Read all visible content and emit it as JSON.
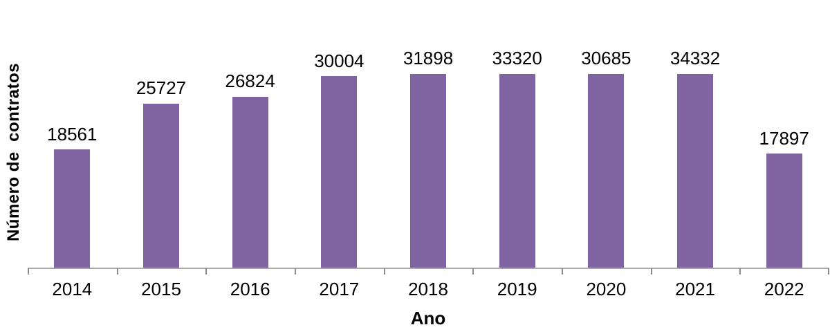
{
  "chart_data": {
    "type": "bar",
    "title": "",
    "categories": [
      "2014",
      "2015",
      "2016",
      "2017",
      "2018",
      "2019",
      "2020",
      "2021",
      "2022"
    ],
    "values": [
      18561,
      25727,
      26824,
      30004,
      31898,
      33320,
      30685,
      34332,
      17897
    ],
    "xlabel": "Ano",
    "ylabel": "Número de  contratos",
    "ylim": [
      0,
      34332
    ],
    "grid": false,
    "legend_position": "none",
    "data_labels": true,
    "colors": {
      "bar": "#8064A2",
      "axis_line": "#A9A9A9",
      "tick": "#8C8C8C",
      "text": "#000000"
    }
  }
}
